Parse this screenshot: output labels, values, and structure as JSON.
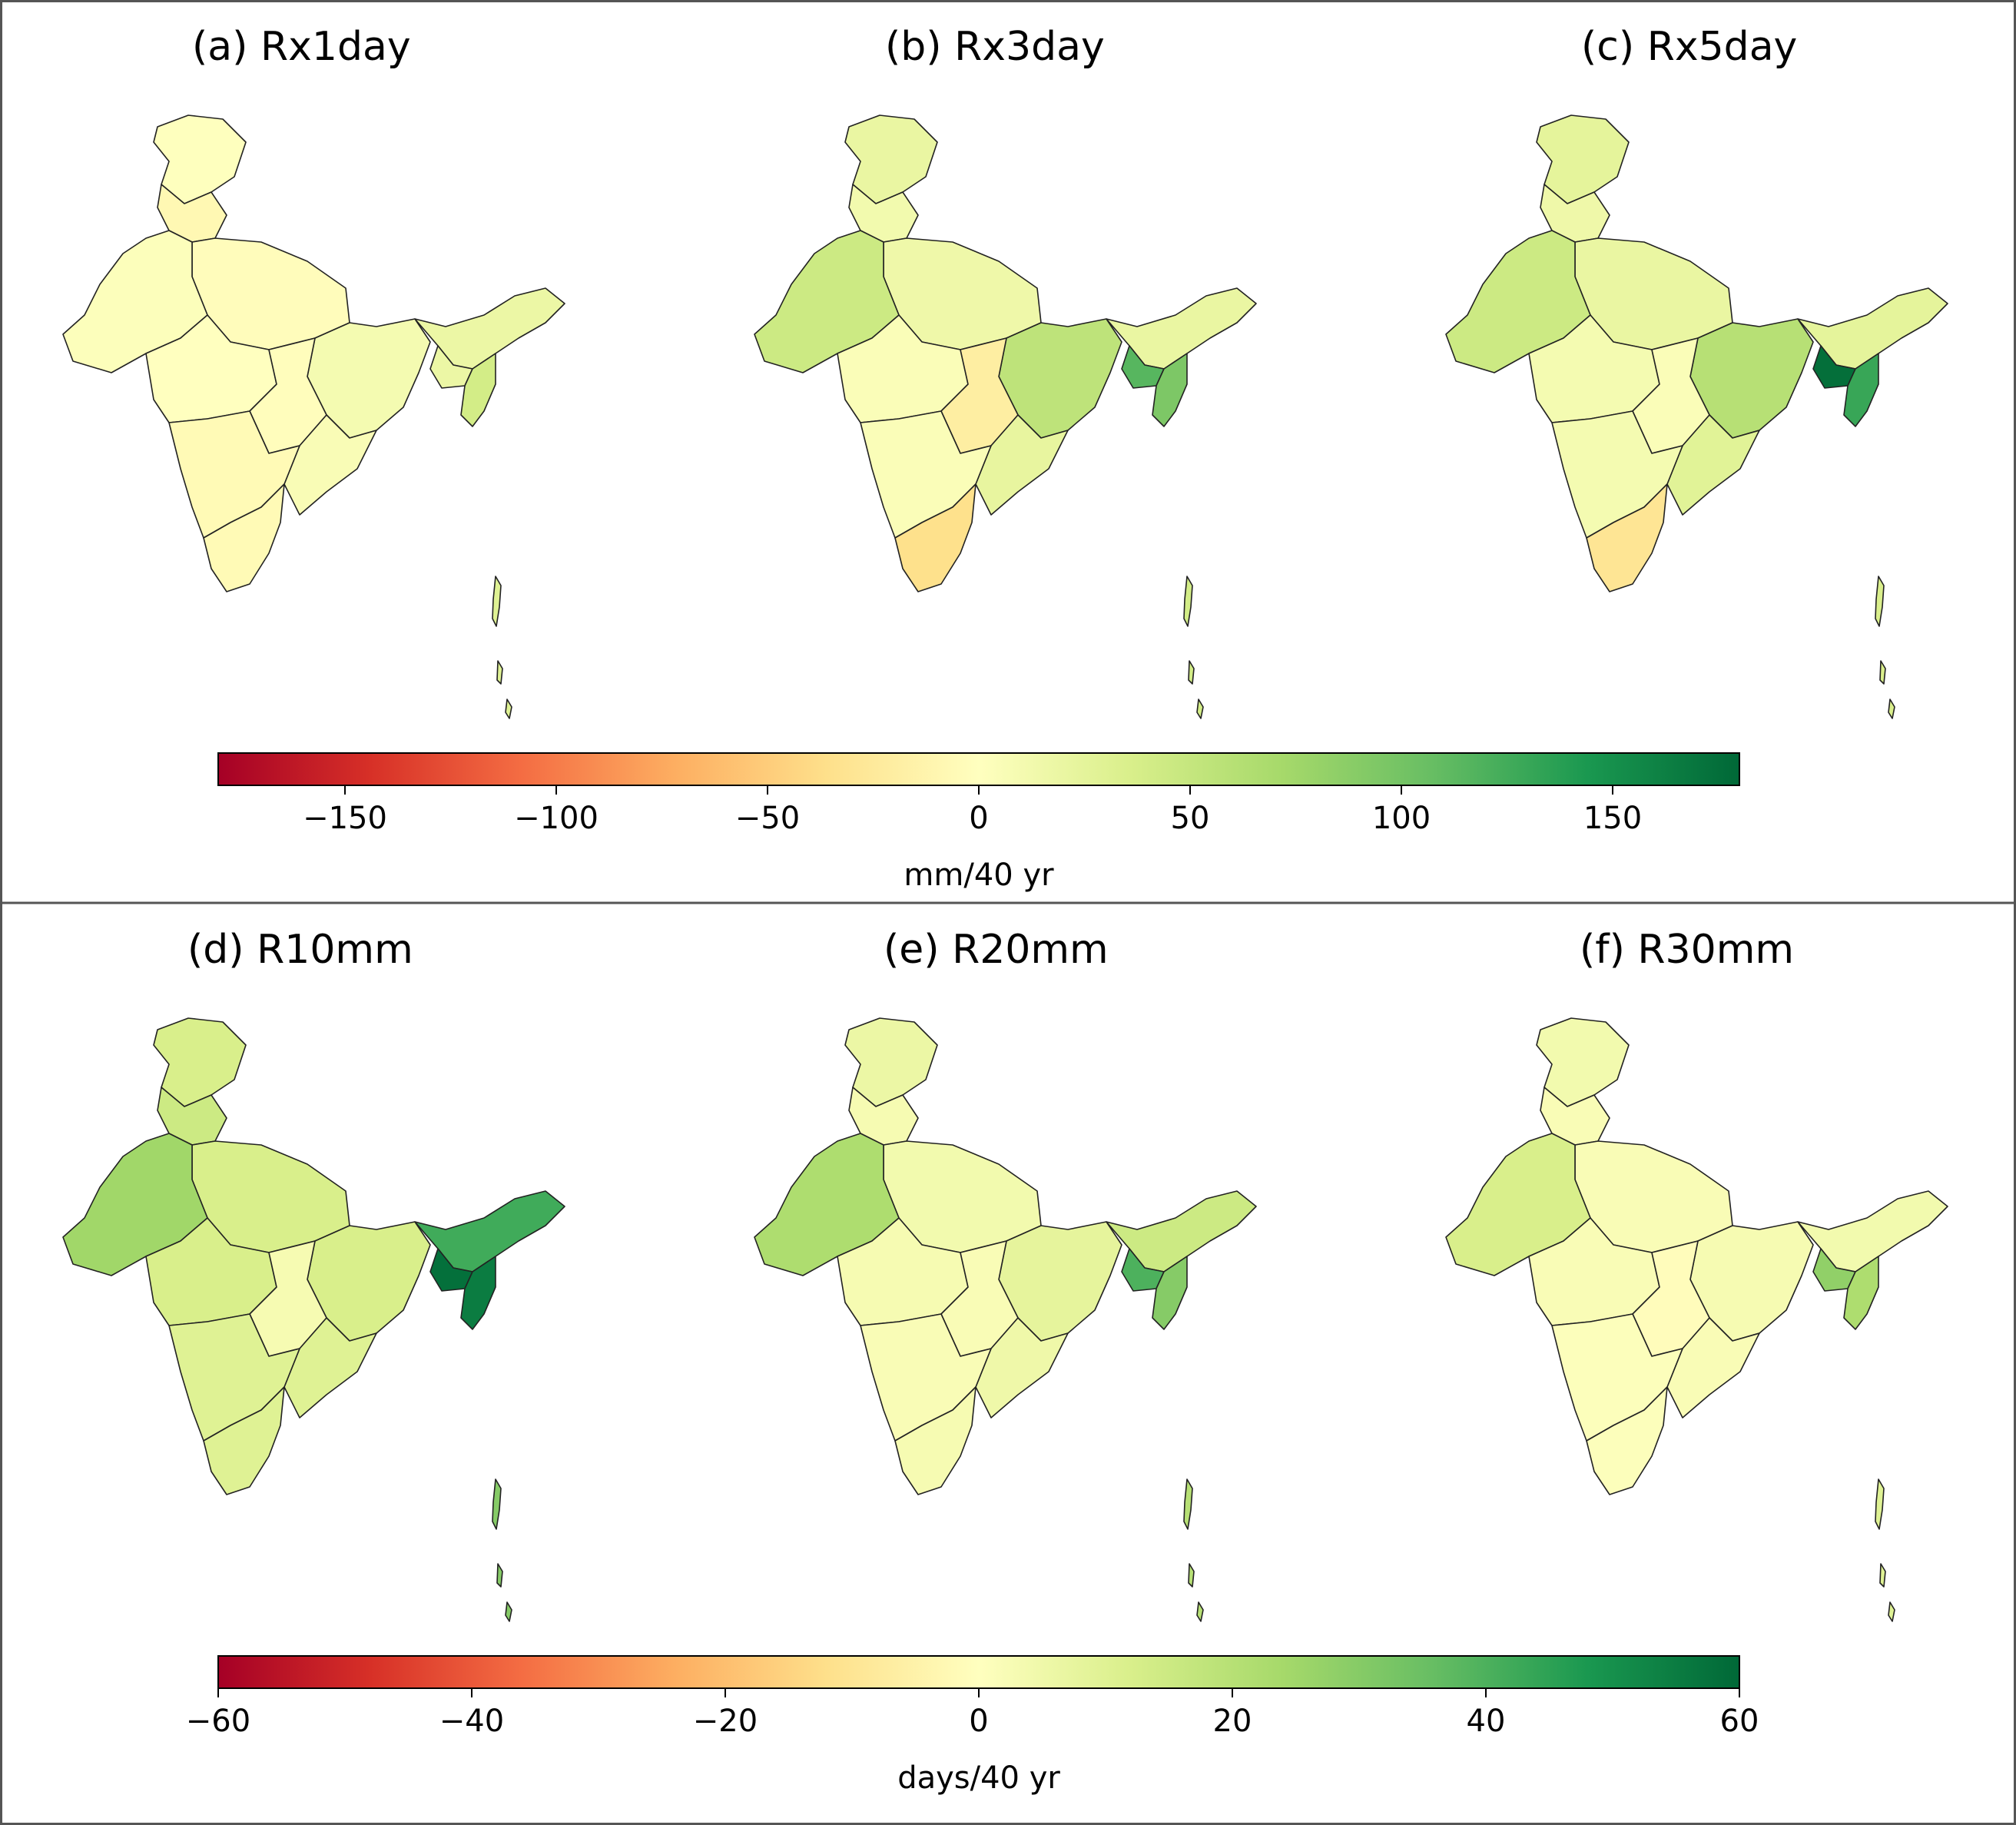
{
  "figure": {
    "rows": [
      {
        "panels": [
          {
            "title": "(a)  Rx1day",
            "shading": {
              "north": 1,
              "northwest": -8,
              "central": -3,
              "west": 3,
              "deccan": -2,
              "east": 10,
              "southwest": 0,
              "south": -6,
              "tamilnadu": -6,
              "eastcoast": 6,
              "northeast": 18,
              "meghalaya": 18,
              "tripura": 40,
              "andaman": 30
            }
          },
          {
            "title": "(b)  Rx3day",
            "shading": {
              "north": 20,
              "northwest": 12,
              "central": 15,
              "west": 45,
              "deccan": -20,
              "east": 55,
              "southwest": 5,
              "south": 5,
              "tamilnadu": -35,
              "eastcoast": 22,
              "northeast": 20,
              "meghalaya": 115,
              "tripura": 95,
              "andaman": 40
            }
          },
          {
            "title": "(c)  Rx5day",
            "shading": {
              "north": 25,
              "northwest": 15,
              "central": 20,
              "west": 45,
              "deccan": 5,
              "east": 60,
              "southwest": 10,
              "south": 10,
              "tamilnadu": -30,
              "eastcoast": 28,
              "northeast": 25,
              "meghalaya": 175,
              "tripura": 130,
              "andaman": 35
            }
          }
        ],
        "colorbar": {
          "ticks": [
            "−150",
            "−100",
            "−50",
            "0",
            "50",
            "100",
            "150"
          ],
          "tick_values": [
            -150,
            -100,
            -50,
            0,
            50,
            100,
            150
          ],
          "range": [
            -180,
            180
          ],
          "label": "mm/40 yr"
        }
      },
      {
        "panels": [
          {
            "title": "(d)  R10mm",
            "shading": {
              "north": 12,
              "northwest": 15,
              "central": 12,
              "west": 25,
              "deccan": 3,
              "east": 12,
              "southwest": 12,
              "south": 10,
              "tamilnadu": 10,
              "eastcoast": 10,
              "northeast": 42,
              "meghalaya": 58,
              "tripura": 55,
              "andaman": 30
            }
          },
          {
            "title": "(e)  R20mm",
            "shading": {
              "north": 6,
              "northwest": 3,
              "central": 4,
              "west": 22,
              "deccan": 2,
              "east": 8,
              "southwest": 3,
              "south": 2,
              "tamilnadu": 3,
              "eastcoast": 5,
              "northeast": 15,
              "meghalaya": 40,
              "tripura": 30,
              "andaman": 20
            }
          },
          {
            "title": "(f)  R30mm",
            "shading": {
              "north": 4,
              "northwest": 2,
              "central": 2,
              "west": 12,
              "deccan": -1,
              "east": 3,
              "southwest": 2,
              "south": 1,
              "tamilnadu": 1,
              "eastcoast": 2,
              "northeast": 4,
              "meghalaya": 28,
              "tripura": 22,
              "andaman": 10
            }
          }
        ],
        "colorbar": {
          "ticks": [
            "−60",
            "−40",
            "−20",
            "0",
            "20",
            "40",
            "60"
          ],
          "tick_values": [
            -60,
            -40,
            -20,
            0,
            20,
            40,
            60
          ],
          "range": [
            -60,
            60
          ],
          "label": "days/40 yr"
        }
      }
    ]
  }
}
